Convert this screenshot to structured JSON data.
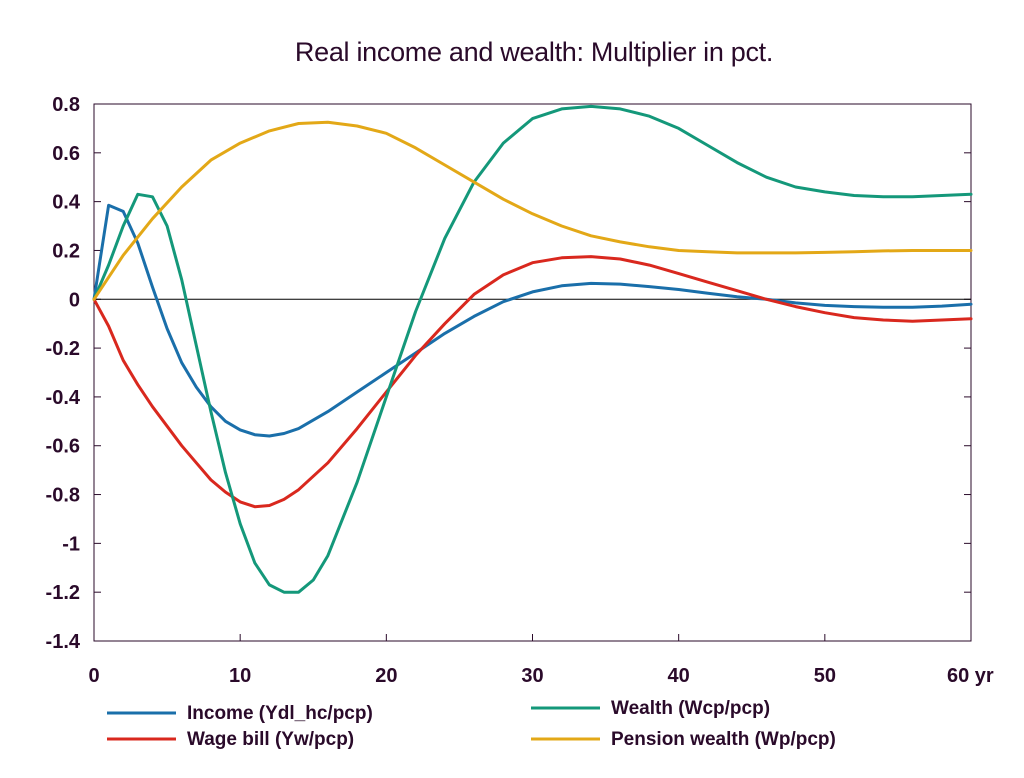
{
  "chart_data": {
    "type": "line",
    "title": "Real income and wealth: Multiplier in pct.",
    "xlabel": "",
    "ylabel": "",
    "x_unit_label": "yr",
    "xlim": [
      0,
      60
    ],
    "ylim": [
      -1.4,
      0.8
    ],
    "x_ticks": [
      0,
      10,
      20,
      30,
      40,
      50,
      60
    ],
    "x_tick_labels": [
      "0",
      "10",
      "20",
      "30",
      "40",
      "50",
      "60 yr"
    ],
    "y_ticks": [
      0.8,
      0.6,
      0.4,
      0.2,
      0,
      -0.2,
      -0.4,
      -0.6,
      -0.8,
      -1,
      -1.2,
      -1.4
    ],
    "y_tick_labels": [
      "0.8",
      "0.6",
      "0.4",
      "0.2",
      "0",
      "-0.2",
      "-0.4",
      "-0.6",
      "-0.8",
      "-1",
      "-1.2",
      "-1.4"
    ],
    "grid": false,
    "zero_line": true,
    "legend_position": "bottom",
    "series": [
      {
        "name": "Income (Ydl_hc/pcp)",
        "color": "#1a6faa",
        "x": [
          0,
          1,
          2,
          3,
          4,
          5,
          6,
          7,
          8,
          9,
          10,
          11,
          12,
          13,
          14,
          16,
          18,
          20,
          22,
          24,
          26,
          28,
          30,
          32,
          34,
          36,
          38,
          40,
          42,
          44,
          46,
          48,
          50,
          52,
          54,
          56,
          58,
          60
        ],
        "values": [
          0,
          0.385,
          0.36,
          0.23,
          0.05,
          -0.12,
          -0.26,
          -0.36,
          -0.44,
          -0.5,
          -0.535,
          -0.555,
          -0.56,
          -0.55,
          -0.53,
          -0.46,
          -0.38,
          -0.3,
          -0.22,
          -0.14,
          -0.07,
          -0.01,
          0.03,
          0.055,
          0.065,
          0.062,
          0.052,
          0.04,
          0.025,
          0.01,
          0.0,
          -0.015,
          -0.025,
          -0.03,
          -0.033,
          -0.033,
          -0.028,
          -0.02
        ]
      },
      {
        "name": "Wage bill (Yw/pcp)",
        "color": "#d9281e",
        "x": [
          0,
          1,
          2,
          3,
          4,
          5,
          6,
          7,
          8,
          9,
          10,
          11,
          12,
          13,
          14,
          16,
          18,
          20,
          22,
          24,
          26,
          28,
          30,
          32,
          34,
          36,
          38,
          40,
          42,
          44,
          46,
          48,
          50,
          52,
          54,
          56,
          58,
          60
        ],
        "values": [
          0,
          -0.11,
          -0.25,
          -0.35,
          -0.44,
          -0.52,
          -0.6,
          -0.67,
          -0.74,
          -0.79,
          -0.83,
          -0.85,
          -0.845,
          -0.82,
          -0.78,
          -0.67,
          -0.53,
          -0.38,
          -0.23,
          -0.1,
          0.02,
          0.1,
          0.15,
          0.17,
          0.175,
          0.165,
          0.14,
          0.105,
          0.07,
          0.035,
          0.0,
          -0.03,
          -0.055,
          -0.075,
          -0.085,
          -0.09,
          -0.085,
          -0.08
        ]
      },
      {
        "name": "Wealth (Wcp/pcp)",
        "color": "#14987a",
        "x": [
          0,
          1,
          2,
          3,
          4,
          5,
          6,
          7,
          8,
          9,
          10,
          11,
          12,
          13,
          14,
          15,
          16,
          18,
          20,
          22,
          24,
          26,
          28,
          30,
          32,
          34,
          36,
          38,
          40,
          42,
          44,
          46,
          48,
          50,
          52,
          54,
          56,
          58,
          60
        ],
        "values": [
          0,
          0.14,
          0.3,
          0.43,
          0.42,
          0.3,
          0.08,
          -0.19,
          -0.46,
          -0.71,
          -0.92,
          -1.08,
          -1.17,
          -1.2,
          -1.2,
          -1.15,
          -1.05,
          -0.75,
          -0.4,
          -0.05,
          0.25,
          0.48,
          0.64,
          0.74,
          0.78,
          0.79,
          0.78,
          0.75,
          0.7,
          0.63,
          0.56,
          0.5,
          0.46,
          0.44,
          0.425,
          0.42,
          0.42,
          0.425,
          0.43
        ]
      },
      {
        "name": "Pension wealth (Wp/pcp)",
        "color": "#e3a817",
        "x": [
          0,
          2,
          4,
          6,
          8,
          10,
          12,
          14,
          16,
          18,
          20,
          22,
          24,
          26,
          28,
          30,
          32,
          34,
          36,
          38,
          40,
          42,
          44,
          46,
          48,
          50,
          52,
          54,
          56,
          58,
          60
        ],
        "values": [
          0,
          0.18,
          0.33,
          0.46,
          0.57,
          0.64,
          0.69,
          0.72,
          0.725,
          0.71,
          0.68,
          0.62,
          0.55,
          0.48,
          0.41,
          0.35,
          0.3,
          0.26,
          0.235,
          0.215,
          0.2,
          0.195,
          0.19,
          0.19,
          0.19,
          0.192,
          0.195,
          0.198,
          0.2,
          0.2,
          0.2
        ]
      }
    ]
  }
}
